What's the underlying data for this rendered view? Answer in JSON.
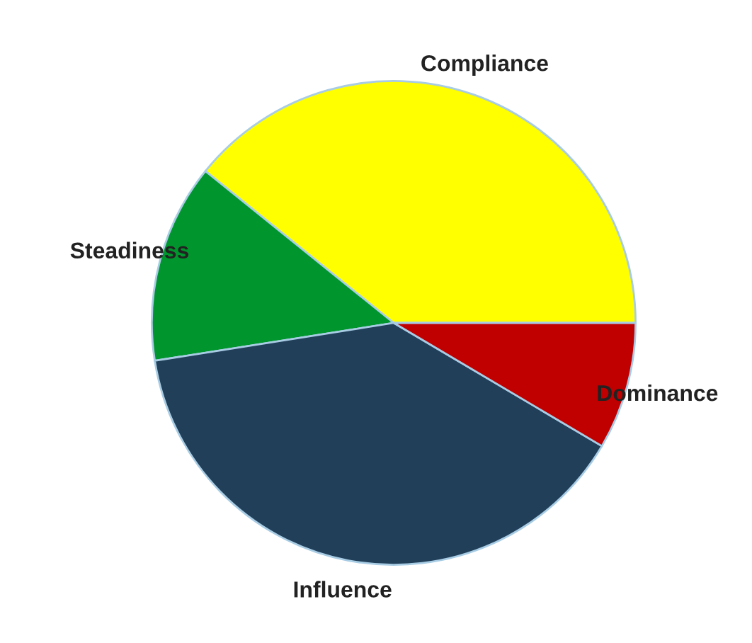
{
  "chart_data": {
    "type": "pie",
    "categories": [
      "Compliance",
      "Steadiness",
      "Influence",
      "Dominance"
    ],
    "values": [
      39.2,
      13.3,
      39.0,
      8.5
    ],
    "colors": [
      "#ffff00",
      "#00962d",
      "#223f5a",
      "#c00000"
    ]
  }
}
